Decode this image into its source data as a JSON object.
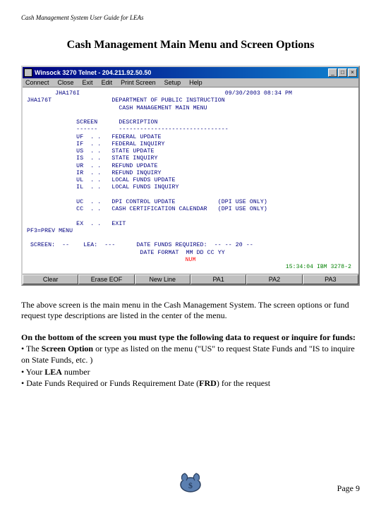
{
  "doc": {
    "header": "Cash Management System User Guide for LEAs",
    "title": "Cash Management Main Menu and Screen Options",
    "para1": "The above screen is the main menu in the Cash Management System.   The screen options  or  fund request type descriptions  are listed in the center of the menu.",
    "para2_lead": "On the bottom of the screen you must  type   the following data to request or inquire for funds:",
    "bullet1_a": "• The ",
    "bullet1_b": "Screen Option",
    "bullet1_c": "  or type as listed on the menu (\"US\" to request State Funds and \"IS to inquire on  State Funds, etc. )",
    "bullet2_a": "• Your ",
    "bullet2_b": "LEA",
    "bullet2_c": " number",
    "bullet3_a": "• Date Funds Required or Funds Requirement Date (",
    "bullet3_b": "FRD",
    "bullet3_c": ") for the request",
    "page": "Page  9"
  },
  "window": {
    "title": "Winsock 3270 Telnet - 204.211.92.50.50",
    "menus": [
      "Connect",
      "Close",
      "Exit",
      "Edit",
      "Print Screen",
      "Setup",
      "Help"
    ],
    "buttons": [
      "Clear",
      "Erase EOF",
      "New Line",
      "PA1",
      "PA2",
      "PA3"
    ],
    "colors": {
      "titlebar_start": "#000080",
      "titlebar_end": "#1084d0",
      "terminal_bg": "#ffffff",
      "terminal_text": "#000080",
      "status_red": "#ff0000",
      "status_green": "#008000",
      "chrome": "#c0c0c0"
    }
  },
  "terminal": {
    "program_id": "JHA176I",
    "date_time": "09/30/2003 08:34 PM",
    "dept": "DEPARTMENT OF PUBLIC INSTRUCTION",
    "subtitle": "CASH MANAGEMENT MAIN MENU",
    "col1": "SCREEN",
    "col2": "DESCRIPTION",
    "rows": [
      {
        "code": "UF",
        "desc": "FEDERAL UPDATE"
      },
      {
        "code": "IF",
        "desc": "FEDERAL INQUIRY"
      },
      {
        "code": "US",
        "desc": "STATE UPDATE"
      },
      {
        "code": "IS",
        "desc": "STATE INQUIRY"
      },
      {
        "code": "UR",
        "desc": "REFUND UPDATE"
      },
      {
        "code": "IR",
        "desc": "REFUND INQUIRY"
      },
      {
        "code": "UL",
        "desc": "LOCAL FUNDS UPDATE"
      },
      {
        "code": "IL",
        "desc": "LOCAL FUNDS INQUIRY"
      }
    ],
    "rows2": [
      {
        "code": "UC",
        "desc": "DPI CONTROL UPDATE",
        "note": "(DPI USE ONLY)"
      },
      {
        "code": "CC",
        "desc": "CASH CERTIFICATION CALENDAR",
        "note": "(DPI USE ONLY)"
      }
    ],
    "exit_code": "EX",
    "exit_desc": "EXIT",
    "pfkey": "PF3=PREV MENU",
    "bottom_line": "SCREEN:  --    LEA:  ---      DATE FUNDS REQUIRED:  -- -- 20 --",
    "date_fmt": "DATE FORMAT  MM DD CC YY",
    "status1": "NUM",
    "status2": "15:34:04 IBM 3278-2"
  }
}
